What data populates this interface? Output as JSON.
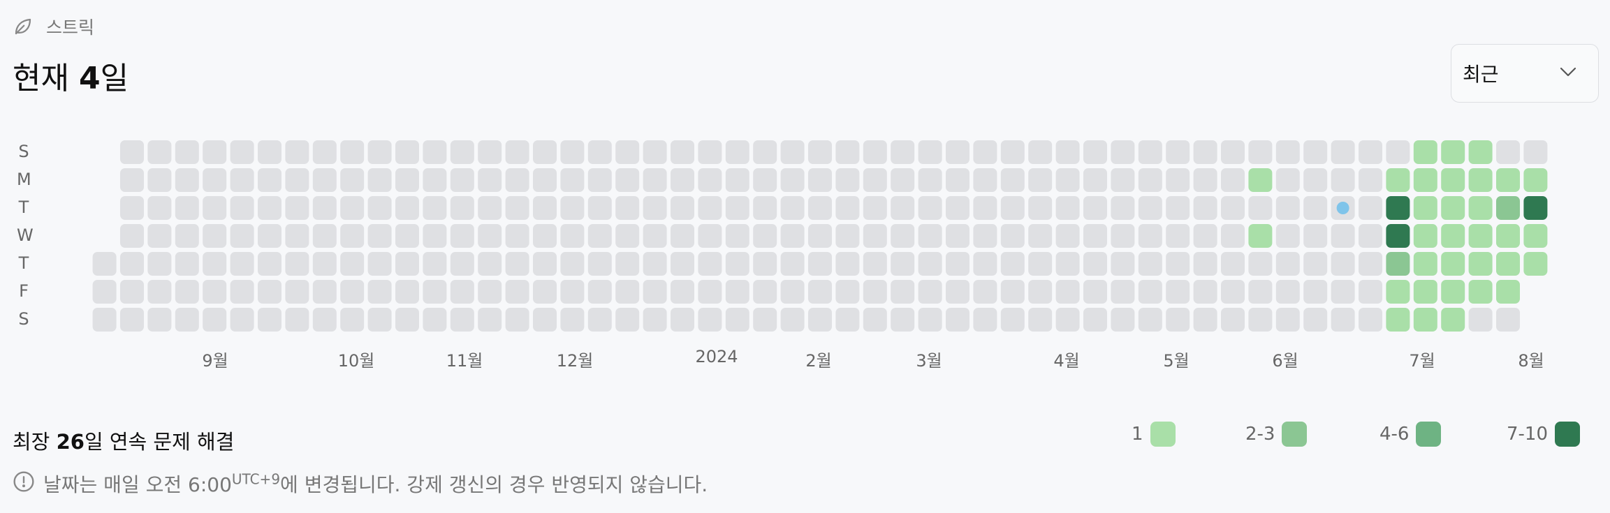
{
  "section": {
    "icon": "leaf-icon",
    "label": "스트릭"
  },
  "title": {
    "prefix": "현재 ",
    "number": "4",
    "suffix": "일"
  },
  "range_select": {
    "value": "최근",
    "icon": "chevron-down-icon"
  },
  "weekdays": [
    "S",
    "M",
    "T",
    "W",
    "T",
    "F",
    "S"
  ],
  "months": [
    "9월",
    "10월",
    "11월",
    "12월",
    "2024",
    "2월",
    "3월",
    "4월",
    "5월",
    "6월",
    "7월",
    "8월"
  ],
  "heatmap": {
    "weeks": 53,
    "levels": [
      0,
      1,
      2,
      3,
      4
    ],
    "level_colors": [
      "#dfe0e3",
      "#a9dfa8",
      "#8bc693",
      "#6eb383",
      "#2f7951"
    ],
    "today_marker_color": "#7fc4ea",
    "active_days": [
      {
        "week": 42,
        "day": 1,
        "level": 1
      },
      {
        "week": 42,
        "day": 3,
        "level": 1
      },
      {
        "week": 47,
        "day": 2,
        "level": 4
      },
      {
        "week": 47,
        "day": 3,
        "level": 4
      },
      {
        "week": 47,
        "day": 4,
        "level": 2
      },
      {
        "week": 47,
        "day": 1,
        "level": 1
      },
      {
        "week": 47,
        "day": 5,
        "level": 1
      },
      {
        "week": 47,
        "day": 6,
        "level": 1
      },
      {
        "week": 48,
        "day": 0,
        "level": 1
      },
      {
        "week": 48,
        "day": 1,
        "level": 1
      },
      {
        "week": 48,
        "day": 2,
        "level": 1
      },
      {
        "week": 48,
        "day": 3,
        "level": 1
      },
      {
        "week": 48,
        "day": 4,
        "level": 1
      },
      {
        "week": 48,
        "day": 5,
        "level": 1
      },
      {
        "week": 48,
        "day": 6,
        "level": 1
      },
      {
        "week": 49,
        "day": 0,
        "level": 1
      },
      {
        "week": 49,
        "day": 1,
        "level": 1
      },
      {
        "week": 49,
        "day": 2,
        "level": 1
      },
      {
        "week": 49,
        "day": 3,
        "level": 1
      },
      {
        "week": 49,
        "day": 4,
        "level": 1
      },
      {
        "week": 49,
        "day": 5,
        "level": 1
      },
      {
        "week": 49,
        "day": 6,
        "level": 1
      },
      {
        "week": 50,
        "day": 0,
        "level": 1
      },
      {
        "week": 50,
        "day": 1,
        "level": 1
      },
      {
        "week": 50,
        "day": 2,
        "level": 1
      },
      {
        "week": 50,
        "day": 3,
        "level": 1
      },
      {
        "week": 50,
        "day": 4,
        "level": 1
      },
      {
        "week": 50,
        "day": 5,
        "level": 1
      },
      {
        "week": 51,
        "day": 1,
        "level": 1
      },
      {
        "week": 51,
        "day": 2,
        "level": 2
      },
      {
        "week": 51,
        "day": 3,
        "level": 1
      },
      {
        "week": 51,
        "day": 4,
        "level": 1
      },
      {
        "week": 51,
        "day": 5,
        "level": 1
      },
      {
        "week": 52,
        "day": 1,
        "level": 1
      },
      {
        "week": 52,
        "day": 2,
        "level": 4
      },
      {
        "week": 52,
        "day": 3,
        "level": 1
      },
      {
        "week": 52,
        "day": 4,
        "level": 1
      }
    ],
    "today": {
      "week": 45,
      "day": 2
    }
  },
  "stat": {
    "prefix": "최장 ",
    "number": "26",
    "suffix": "일 연속 문제 해결"
  },
  "legend": [
    {
      "label": "1",
      "color": "#a9dfa8"
    },
    {
      "label": "2-3",
      "color": "#8bc693"
    },
    {
      "label": "4-6",
      "color": "#6eb383"
    },
    {
      "label": "7-10",
      "color": "#2f7951"
    }
  ],
  "notice": {
    "icon": "info-circle-icon",
    "text_before": "날짜는 매일 오전 6:00",
    "timezone": "UTC+9",
    "text_after": "에 변경됩니다. 강제 갱신의 경우 반영되지 않습니다."
  }
}
